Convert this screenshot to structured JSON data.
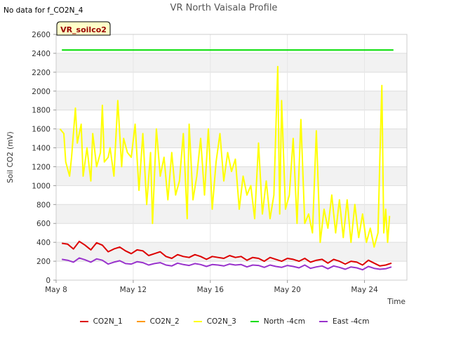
{
  "note": "No data for f_CO2N_4",
  "badge": "VR_soilco2",
  "chart_data": {
    "type": "line",
    "title": "VR North Vaisala Profile",
    "xlabel": "Time",
    "ylabel": "Soil CO2 (mV)",
    "xlim": [
      8.0,
      26.2
    ],
    "ylim": [
      0,
      2600
    ],
    "yticks": [
      0,
      200,
      400,
      600,
      800,
      1000,
      1200,
      1400,
      1600,
      1800,
      2000,
      2200,
      2400,
      2600
    ],
    "xticks": [
      {
        "value": 8,
        "label": "May 8"
      },
      {
        "value": 12,
        "label": "May 12"
      },
      {
        "value": 16,
        "label": "May 16"
      },
      {
        "value": 20,
        "label": "May 20"
      },
      {
        "value": 24,
        "label": "May 24"
      }
    ],
    "grid": true,
    "legend_position": "bottom",
    "series": [
      {
        "name": "CO2N_1",
        "color": "#dd0000",
        "x": [
          8.3,
          8.6,
          8.9,
          9.2,
          9.5,
          9.8,
          10.1,
          10.4,
          10.7,
          11.0,
          11.3,
          11.6,
          11.9,
          12.2,
          12.5,
          12.8,
          13.1,
          13.4,
          13.7,
          14.0,
          14.3,
          14.6,
          14.9,
          15.2,
          15.5,
          15.8,
          16.1,
          16.4,
          16.7,
          17.0,
          17.3,
          17.6,
          17.9,
          18.2,
          18.5,
          18.8,
          19.1,
          19.4,
          19.7,
          20.0,
          20.3,
          20.6,
          20.9,
          21.2,
          21.5,
          21.8,
          22.1,
          22.4,
          22.7,
          23.0,
          23.3,
          23.6,
          23.9,
          24.2,
          24.5,
          24.8,
          25.1,
          25.4
        ],
        "values": [
          390,
          380,
          330,
          410,
          370,
          320,
          395,
          370,
          300,
          330,
          350,
          310,
          280,
          320,
          310,
          260,
          280,
          300,
          250,
          230,
          270,
          250,
          240,
          270,
          250,
          220,
          250,
          240,
          230,
          260,
          240,
          250,
          210,
          240,
          230,
          200,
          240,
          220,
          200,
          230,
          220,
          200,
          230,
          190,
          210,
          220,
          180,
          220,
          200,
          170,
          200,
          190,
          160,
          210,
          180,
          150,
          160,
          180
        ]
      },
      {
        "name": "CO2N_2",
        "color": "#ff9900",
        "x": [],
        "values": []
      },
      {
        "name": "CO2N_3",
        "color": "#ffff00",
        "x": [
          8.2,
          8.4,
          8.5,
          8.7,
          8.8,
          9.0,
          9.1,
          9.3,
          9.4,
          9.6,
          9.8,
          9.9,
          10.1,
          10.3,
          10.4,
          10.5,
          10.7,
          10.8,
          11.0,
          11.2,
          11.4,
          11.5,
          11.7,
          11.9,
          12.1,
          12.3,
          12.5,
          12.7,
          12.9,
          13.0,
          13.2,
          13.4,
          13.6,
          13.8,
          14.0,
          14.2,
          14.4,
          14.6,
          14.8,
          14.9,
          15.1,
          15.3,
          15.5,
          15.7,
          15.9,
          16.1,
          16.3,
          16.5,
          16.7,
          16.9,
          17.1,
          17.3,
          17.5,
          17.7,
          17.9,
          18.1,
          18.3,
          18.5,
          18.7,
          18.9,
          19.1,
          19.3,
          19.5,
          19.6,
          19.7,
          19.9,
          20.1,
          20.3,
          20.5,
          20.7,
          20.9,
          21.1,
          21.3,
          21.5,
          21.7,
          21.9,
          22.1,
          22.3,
          22.5,
          22.7,
          22.9,
          23.1,
          23.3,
          23.5,
          23.7,
          23.9,
          24.1,
          24.3,
          24.5,
          24.7,
          24.8,
          24.9,
          25.0,
          25.1,
          25.2,
          25.3
        ],
        "values": [
          1600,
          1550,
          1250,
          1100,
          1300,
          1820,
          1450,
          1650,
          1100,
          1400,
          1050,
          1550,
          1200,
          1350,
          1850,
          1250,
          1300,
          1400,
          1100,
          1900,
          1200,
          1500,
          1350,
          1300,
          1650,
          950,
          1550,
          800,
          1350,
          600,
          1600,
          1100,
          1300,
          850,
          1350,
          900,
          1050,
          1550,
          650,
          1650,
          850,
          1100,
          1500,
          900,
          1600,
          750,
          1250,
          1550,
          1050,
          1350,
          1150,
          1280,
          750,
          1100,
          900,
          1000,
          650,
          1450,
          700,
          1050,
          650,
          900,
          2260,
          700,
          1900,
          750,
          900,
          1500,
          600,
          1700,
          600,
          700,
          500,
          1580,
          400,
          750,
          550,
          900,
          500,
          850,
          450,
          850,
          400,
          800,
          450,
          700,
          400,
          550,
          350,
          500,
          1300,
          2060,
          500,
          750,
          400,
          680
        ]
      },
      {
        "name": "North -4cm",
        "color": "#00dd00",
        "x": [
          8.3,
          25.5
        ],
        "values": [
          2435,
          2435
        ]
      },
      {
        "name": "East -4cm",
        "color": "#9933cc",
        "x": [
          8.3,
          8.6,
          8.9,
          9.2,
          9.5,
          9.8,
          10.1,
          10.4,
          10.7,
          11.0,
          11.3,
          11.6,
          11.9,
          12.2,
          12.5,
          12.8,
          13.1,
          13.4,
          13.7,
          14.0,
          14.3,
          14.6,
          14.9,
          15.2,
          15.5,
          15.8,
          16.1,
          16.4,
          16.7,
          17.0,
          17.3,
          17.6,
          17.9,
          18.2,
          18.5,
          18.8,
          19.1,
          19.4,
          19.7,
          20.0,
          20.3,
          20.6,
          20.9,
          21.2,
          21.5,
          21.8,
          22.1,
          22.4,
          22.7,
          23.0,
          23.3,
          23.6,
          23.9,
          24.2,
          24.5,
          24.8,
          25.1,
          25.4
        ],
        "values": [
          220,
          210,
          190,
          235,
          215,
          190,
          225,
          210,
          170,
          190,
          205,
          175,
          170,
          195,
          185,
          160,
          175,
          185,
          160,
          150,
          180,
          165,
          155,
          175,
          165,
          145,
          165,
          160,
          150,
          170,
          160,
          165,
          140,
          160,
          155,
          135,
          160,
          145,
          135,
          155,
          145,
          130,
          160,
          125,
          140,
          150,
          120,
          150,
          135,
          115,
          140,
          130,
          110,
          145,
          125,
          115,
          120,
          140
        ]
      }
    ]
  }
}
